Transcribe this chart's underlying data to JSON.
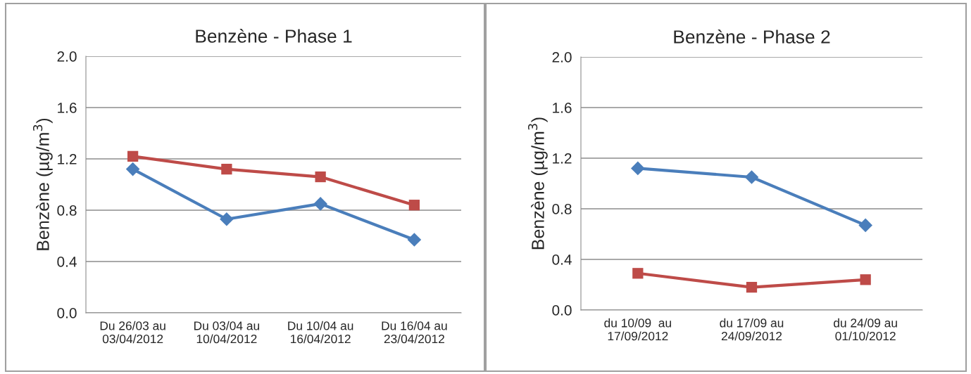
{
  "chart_data": [
    {
      "type": "line",
      "title": "Benzène - Phase 1",
      "ylabel": "Benzène (µg/m$^{3}$)",
      "categories": [
        "Du 26/03 au\n03/04/2012",
        "Du 03/04 au\n10/04/2012",
        "Du 10/04 au\n16/04/2012",
        "Du 16/04 au\n23/04/2012"
      ],
      "series": [
        {
          "color": "#4a7ebb",
          "marker": "diamond",
          "values": [
            1.12,
            0.73,
            0.85,
            0.57
          ]
        },
        {
          "color": "#be4b48",
          "marker": "square",
          "values": [
            1.22,
            1.12,
            1.06,
            0.84
          ]
        }
      ],
      "ylim": [
        0,
        2
      ],
      "yticks": [
        {
          "value": 0,
          "label": "0.0"
        },
        {
          "value": 0.4,
          "label": "0.4"
        },
        {
          "value": 0.8,
          "label": "0.8"
        },
        {
          "value": 1.2,
          "label": "1.2"
        },
        {
          "value": 1.6,
          "label": "1.6"
        },
        {
          "value": 2,
          "label": "2.0"
        }
      ],
      "grid": "y",
      "line_style": "solid"
    },
    {
      "type": "line",
      "title": "Benzène - Phase 2",
      "ylabel": "Benzène (µg/m$^{3}$)",
      "categories": [
        "du 10/09  au\n17/09/2012",
        "du 17/09 au\n24/09/2012",
        "du 24/09 au\n01/10/2012"
      ],
      "series": [
        {
          "color": "#4a7ebb",
          "marker": "diamond",
          "values": [
            1.12,
            1.05,
            0.67
          ]
        },
        {
          "color": "#be4b48",
          "marker": "square",
          "values": [
            0.29,
            0.18,
            0.24
          ]
        }
      ],
      "ylim": [
        0,
        2
      ],
      "yticks": [
        {
          "value": 0,
          "label": "0.0"
        },
        {
          "value": 0.4,
          "label": "0.4"
        },
        {
          "value": 0.8,
          "label": "0.8"
        },
        {
          "value": 1.2,
          "label": "1.2"
        },
        {
          "value": 1.6,
          "label": "1.6"
        },
        {
          "value": 2,
          "label": "2.0"
        }
      ],
      "grid": "y",
      "line_style": "solid"
    }
  ]
}
